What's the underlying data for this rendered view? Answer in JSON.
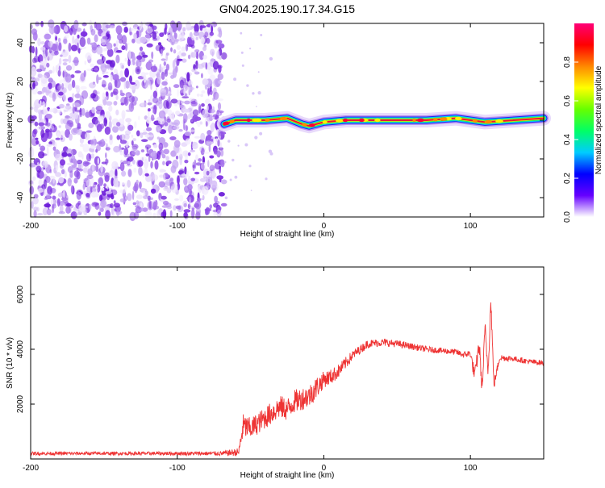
{
  "page_title": "GN04.2025.190.17.34.G15",
  "colors": {
    "snr_line": "#ee3333",
    "axis": "#000000",
    "spectrogram_noise": "#7a2be0",
    "ridge_core": "#e8153a"
  },
  "chart_data": [
    {
      "type": "heatmap",
      "title": "GN04.2025.190.17.34.G15",
      "xlabel": "Height of straight line (km)",
      "ylabel": "Frequency (Hz)",
      "xlim": [
        -200,
        150
      ],
      "ylim": [
        -50,
        50
      ],
      "x_ticks": [
        "-200",
        "-100",
        "0",
        "100"
      ],
      "x_tick_values": [
        -200,
        -100,
        0,
        100
      ],
      "y_ticks": [
        "-40",
        "-20",
        "0",
        "20",
        "40"
      ],
      "y_tick_values": [
        -40,
        -20,
        0,
        20,
        40
      ],
      "noise_region_x": [
        -200,
        -68
      ],
      "ridge": [
        {
          "x": -68,
          "freq": -2
        },
        {
          "x": -60,
          "freq": 0
        },
        {
          "x": -40,
          "freq": 0
        },
        {
          "x": -25,
          "freq": 1
        },
        {
          "x": -15,
          "freq": -2
        },
        {
          "x": -10,
          "freq": -3
        },
        {
          "x": 0,
          "freq": -1
        },
        {
          "x": 15,
          "freq": 0
        },
        {
          "x": 70,
          "freq": 0
        },
        {
          "x": 90,
          "freq": 1
        },
        {
          "x": 110,
          "freq": -1
        },
        {
          "x": 150,
          "freq": 1
        }
      ],
      "colorbar": {
        "label": "Normalized spectral amplitude",
        "range": [
          0,
          1
        ],
        "ticks": [
          "0.0",
          "0.2",
          "0.4",
          "0.6",
          "0.8"
        ],
        "tick_values": [
          0.0,
          0.2,
          0.4,
          0.6,
          0.8
        ],
        "colors": [
          "#ffffff",
          "#6600ff",
          "#0000ff",
          "#00ccff",
          "#00ff66",
          "#66ff00",
          "#ffff00",
          "#ff8800",
          "#ff0000",
          "#ff0077"
        ]
      },
      "grid": false
    },
    {
      "type": "line",
      "title": "",
      "xlabel": "Height of straight line (km)",
      "ylabel": "SNR (10 * v/v)",
      "xlim": [
        -200,
        150
      ],
      "ylim": [
        0,
        7000
      ],
      "x_ticks": [
        "-200",
        "-100",
        "0",
        "100"
      ],
      "x_tick_values": [
        -200,
        -100,
        0,
        100
      ],
      "y_ticks": [
        "2000",
        "4000",
        "6000"
      ],
      "y_tick_values": [
        2000,
        4000,
        6000
      ],
      "series": [
        {
          "x": [
            -200,
            -150,
            -100,
            -70,
            -58,
            -55,
            -50,
            -45,
            -40,
            -35,
            -30,
            -25,
            -20,
            -15,
            -10,
            -5,
            0,
            5,
            10,
            15,
            20,
            25,
            30,
            40,
            50,
            60,
            70,
            80,
            90,
            95,
            100,
            103,
            106,
            108,
            110,
            112,
            114,
            116,
            120,
            130,
            140,
            150
          ],
          "y": [
            200,
            200,
            200,
            200,
            250,
            1200,
            1100,
            1300,
            1500,
            1700,
            1900,
            1800,
            2100,
            2200,
            2300,
            2600,
            2900,
            3000,
            3200,
            3500,
            3800,
            4000,
            4200,
            4250,
            4200,
            4100,
            4000,
            3950,
            3900,
            3800,
            3850,
            3000,
            4200,
            2500,
            4800,
            3200,
            5800,
            2700,
            3700,
            3650,
            3550,
            3500
          ],
          "noise": [
            60,
            60,
            70,
            80,
            150,
            450,
            400,
            400,
            400,
            420,
            420,
            420,
            420,
            420,
            420,
            420,
            300,
            280,
            260,
            220,
            180,
            160,
            150,
            140,
            130,
            120,
            110,
            110,
            110,
            120,
            140,
            300,
            300,
            300,
            300,
            300,
            300,
            200,
            120,
            100,
            100,
            100
          ]
        }
      ],
      "grid": false
    }
  ]
}
